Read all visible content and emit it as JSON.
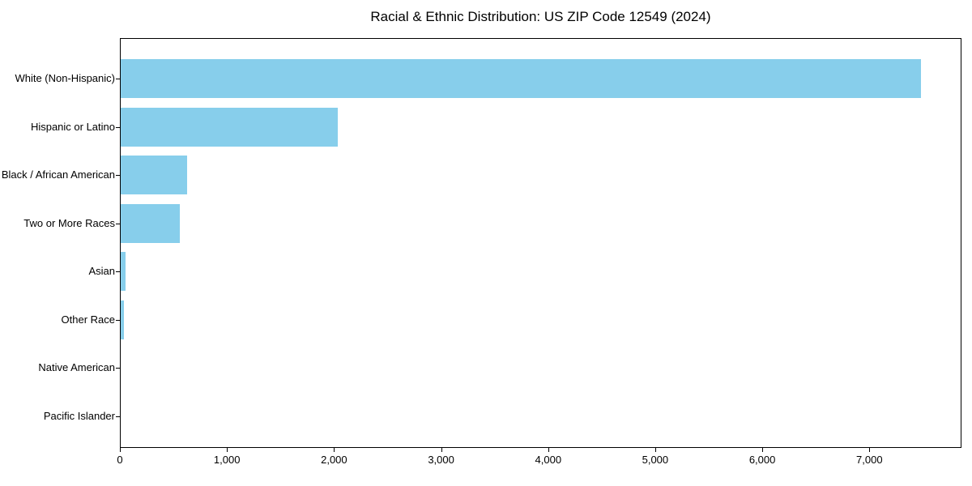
{
  "chart_data": {
    "type": "bar",
    "orientation": "horizontal",
    "title": "Racial & Ethnic Distribution: US ZIP Code 12549 (2024)",
    "categories": [
      "White (Non-Hispanic)",
      "Hispanic or Latino",
      "Black / African American",
      "Two or More Races",
      "Asian",
      "Other Race",
      "Native American",
      "Pacific Islander"
    ],
    "values": [
      7475,
      2030,
      620,
      555,
      47,
      32,
      0,
      0
    ],
    "xlabel": "",
    "ylabel": "",
    "xlim": [
      0,
      7860
    ],
    "x_ticks": [
      0,
      1000,
      2000,
      3000,
      4000,
      5000,
      6000,
      7000
    ],
    "x_tick_labels": [
      "0",
      "1,000",
      "2,000",
      "3,000",
      "4,000",
      "5,000",
      "6,000",
      "7,000"
    ],
    "grid": false,
    "legend": null,
    "bar_color": "#87CEEB",
    "frame_color": "#000000",
    "text_color": "#000000",
    "background_color": "#ffffff"
  }
}
